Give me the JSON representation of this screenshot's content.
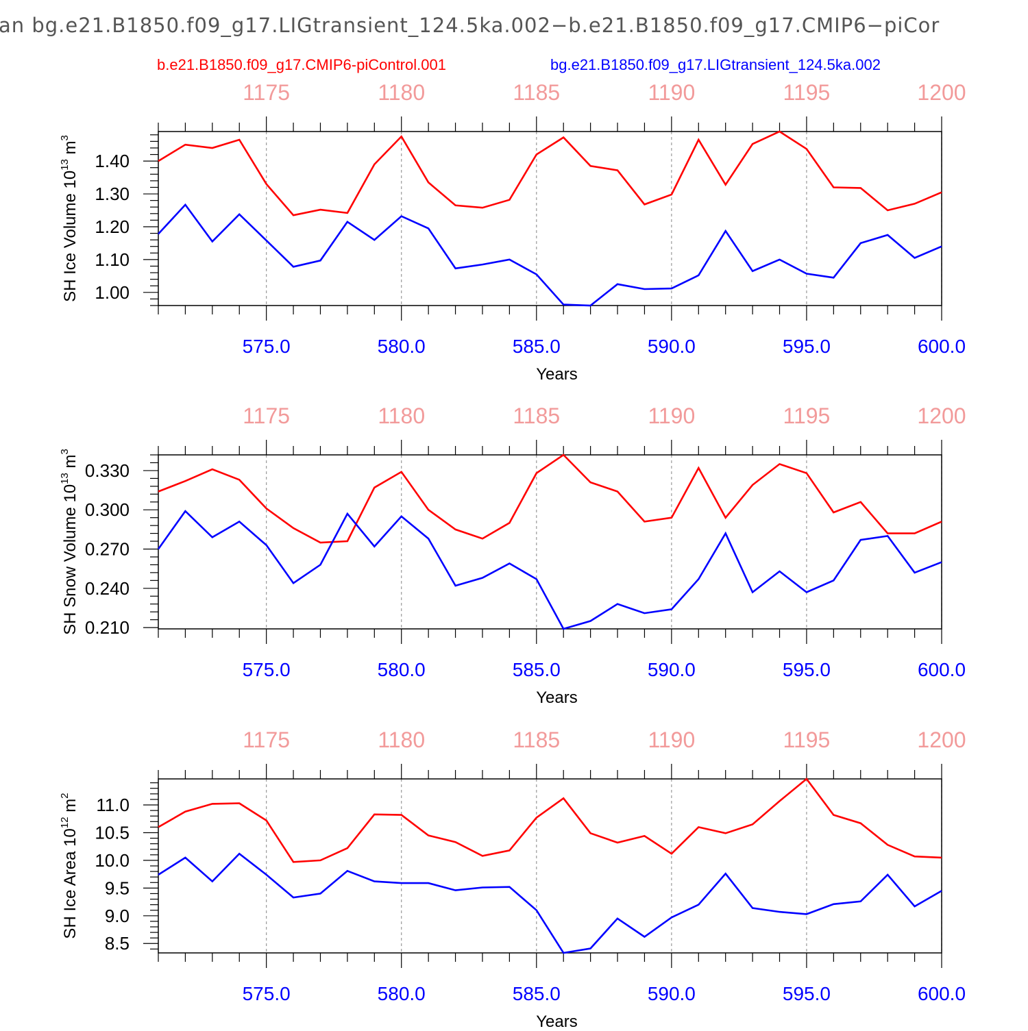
{
  "title": "an bg.e21.B1850.f09_g17.LIGtransient_124.5ka.002−b.e21.B1850.f09_g17.CMIP6−piCor",
  "legend": [
    {
      "label": "b.e21.B1850.f09_g17.CMIP6-piControl.001",
      "color": "#ff0000"
    },
    {
      "label": "bg.e21.B1850.f09_g17.LIGtransient_124.5ka.002",
      "color": "#0000ff"
    }
  ],
  "colors": {
    "control": "#ff0000",
    "transient": "#0000ff",
    "top_axis": "#f29a9a",
    "bottom_axis": "#0000ff"
  },
  "chart_data": [
    {
      "type": "line",
      "ylabel": "SH Ice Volume",
      "yunit_base": "10",
      "yunit_exp": "13",
      "yunit_suffix": "m",
      "yunit_suffix_exp": "3",
      "xlabel": "Years",
      "xlim": [
        571,
        600
      ],
      "ylim": [
        0.96,
        1.49
      ],
      "yticks": [
        1.0,
        1.1,
        1.2,
        1.3,
        1.4
      ],
      "ytick_labels": [
        "1.00",
        "1.10",
        "1.20",
        "1.30",
        "1.40"
      ],
      "yminor_step": 0.02,
      "xticks": [
        575,
        580,
        585,
        590,
        595,
        600
      ],
      "xtick_labels": [
        "575.0",
        "580.0",
        "585.0",
        "590.0",
        "595.0",
        "600.0"
      ],
      "top_xticks": [
        575,
        580,
        585,
        590,
        595,
        600
      ],
      "top_xtick_labels": [
        "1175",
        "1180",
        "1185",
        "1190",
        "1195",
        "1200"
      ],
      "x": [
        571,
        572,
        573,
        574,
        575,
        576,
        577,
        578,
        579,
        580,
        581,
        582,
        583,
        584,
        585,
        586,
        587,
        588,
        589,
        590,
        591,
        592,
        593,
        594,
        595,
        596,
        597,
        598,
        599,
        600
      ],
      "series": [
        {
          "key": "control",
          "values": [
            1.4,
            1.45,
            1.44,
            1.465,
            1.33,
            1.235,
            1.252,
            1.242,
            1.39,
            1.475,
            1.335,
            1.265,
            1.258,
            1.282,
            1.42,
            1.472,
            1.385,
            1.372,
            1.268,
            1.298,
            1.465,
            1.328,
            1.452,
            1.49,
            1.437,
            1.32,
            1.318,
            1.25,
            1.27,
            1.305
          ]
        },
        {
          "key": "transient",
          "values": [
            1.178,
            1.267,
            1.155,
            1.238,
            1.158,
            1.078,
            1.097,
            1.215,
            1.16,
            1.232,
            1.195,
            1.073,
            1.085,
            1.1,
            1.055,
            0.963,
            0.96,
            1.025,
            1.01,
            1.012,
            1.052,
            1.187,
            1.065,
            1.1,
            1.057,
            1.045,
            1.15,
            1.175,
            1.105,
            1.14
          ]
        }
      ]
    },
    {
      "type": "line",
      "ylabel": "SH Snow Volume",
      "yunit_base": "10",
      "yunit_exp": "13",
      "yunit_suffix": "m",
      "yunit_suffix_exp": "3",
      "xlabel": "Years",
      "xlim": [
        571,
        600
      ],
      "ylim": [
        0.209,
        0.342
      ],
      "yticks": [
        0.21,
        0.24,
        0.27,
        0.3,
        0.33
      ],
      "ytick_labels": [
        "0.210",
        "0.240",
        "0.270",
        "0.300",
        "0.330"
      ],
      "yminor_step": 0.006,
      "xticks": [
        575,
        580,
        585,
        590,
        595,
        600
      ],
      "xtick_labels": [
        "575.0",
        "580.0",
        "585.0",
        "590.0",
        "595.0",
        "600.0"
      ],
      "top_xticks": [
        575,
        580,
        585,
        590,
        595,
        600
      ],
      "top_xtick_labels": [
        "1175",
        "1180",
        "1185",
        "1190",
        "1195",
        "1200"
      ],
      "x": [
        571,
        572,
        573,
        574,
        575,
        576,
        577,
        578,
        579,
        580,
        581,
        582,
        583,
        584,
        585,
        586,
        587,
        588,
        589,
        590,
        591,
        592,
        593,
        594,
        595,
        596,
        597,
        598,
        599,
        600
      ],
      "series": [
        {
          "key": "control",
          "values": [
            0.314,
            0.322,
            0.331,
            0.323,
            0.301,
            0.286,
            0.275,
            0.276,
            0.317,
            0.329,
            0.3,
            0.285,
            0.278,
            0.29,
            0.328,
            0.342,
            0.321,
            0.314,
            0.291,
            0.294,
            0.332,
            0.294,
            0.319,
            0.335,
            0.328,
            0.298,
            0.306,
            0.282,
            0.282,
            0.291
          ]
        },
        {
          "key": "transient",
          "values": [
            0.27,
            0.299,
            0.279,
            0.291,
            0.273,
            0.244,
            0.258,
            0.297,
            0.272,
            0.295,
            0.278,
            0.242,
            0.248,
            0.259,
            0.247,
            0.209,
            0.215,
            0.228,
            0.221,
            0.224,
            0.247,
            0.282,
            0.237,
            0.253,
            0.237,
            0.246,
            0.277,
            0.28,
            0.252,
            0.26
          ]
        }
      ]
    },
    {
      "type": "line",
      "ylabel": "SH Ice Area",
      "yunit_base": "10",
      "yunit_exp": "12",
      "yunit_suffix": "m",
      "yunit_suffix_exp": "2",
      "xlabel": "Years",
      "xlim": [
        571,
        600
      ],
      "ylim": [
        8.33,
        11.47
      ],
      "yticks": [
        8.5,
        9.0,
        9.5,
        10.0,
        10.5,
        11.0
      ],
      "ytick_labels": [
        "8.5",
        "9.0",
        "9.5",
        "10.0",
        "10.5",
        "11.0"
      ],
      "yminor_step": 0.1,
      "xticks": [
        575,
        580,
        585,
        590,
        595,
        600
      ],
      "xtick_labels": [
        "575.0",
        "580.0",
        "585.0",
        "590.0",
        "595.0",
        "600.0"
      ],
      "top_xticks": [
        575,
        580,
        585,
        590,
        595,
        600
      ],
      "top_xtick_labels": [
        "1175",
        "1180",
        "1185",
        "1190",
        "1195",
        "1200"
      ],
      "x": [
        571,
        572,
        573,
        574,
        575,
        576,
        577,
        578,
        579,
        580,
        581,
        582,
        583,
        584,
        585,
        586,
        587,
        588,
        589,
        590,
        591,
        592,
        593,
        594,
        595,
        596,
        597,
        598,
        599,
        600
      ],
      "series": [
        {
          "key": "control",
          "values": [
            10.6,
            10.88,
            11.02,
            11.03,
            10.72,
            9.97,
            10.0,
            10.22,
            10.83,
            10.82,
            10.45,
            10.33,
            10.08,
            10.18,
            10.77,
            11.12,
            10.49,
            10.32,
            10.44,
            10.12,
            10.6,
            10.49,
            10.65,
            11.07,
            11.47,
            10.82,
            10.67,
            10.28,
            10.07,
            10.05
          ]
        },
        {
          "key": "transient",
          "values": [
            9.74,
            10.05,
            9.62,
            10.12,
            9.74,
            9.33,
            9.4,
            9.81,
            9.62,
            9.59,
            9.59,
            9.46,
            9.51,
            9.52,
            9.1,
            8.33,
            8.41,
            8.95,
            8.62,
            8.97,
            9.2,
            9.76,
            9.14,
            9.07,
            9.03,
            9.21,
            9.26,
            9.74,
            9.17,
            9.45
          ]
        }
      ]
    }
  ]
}
